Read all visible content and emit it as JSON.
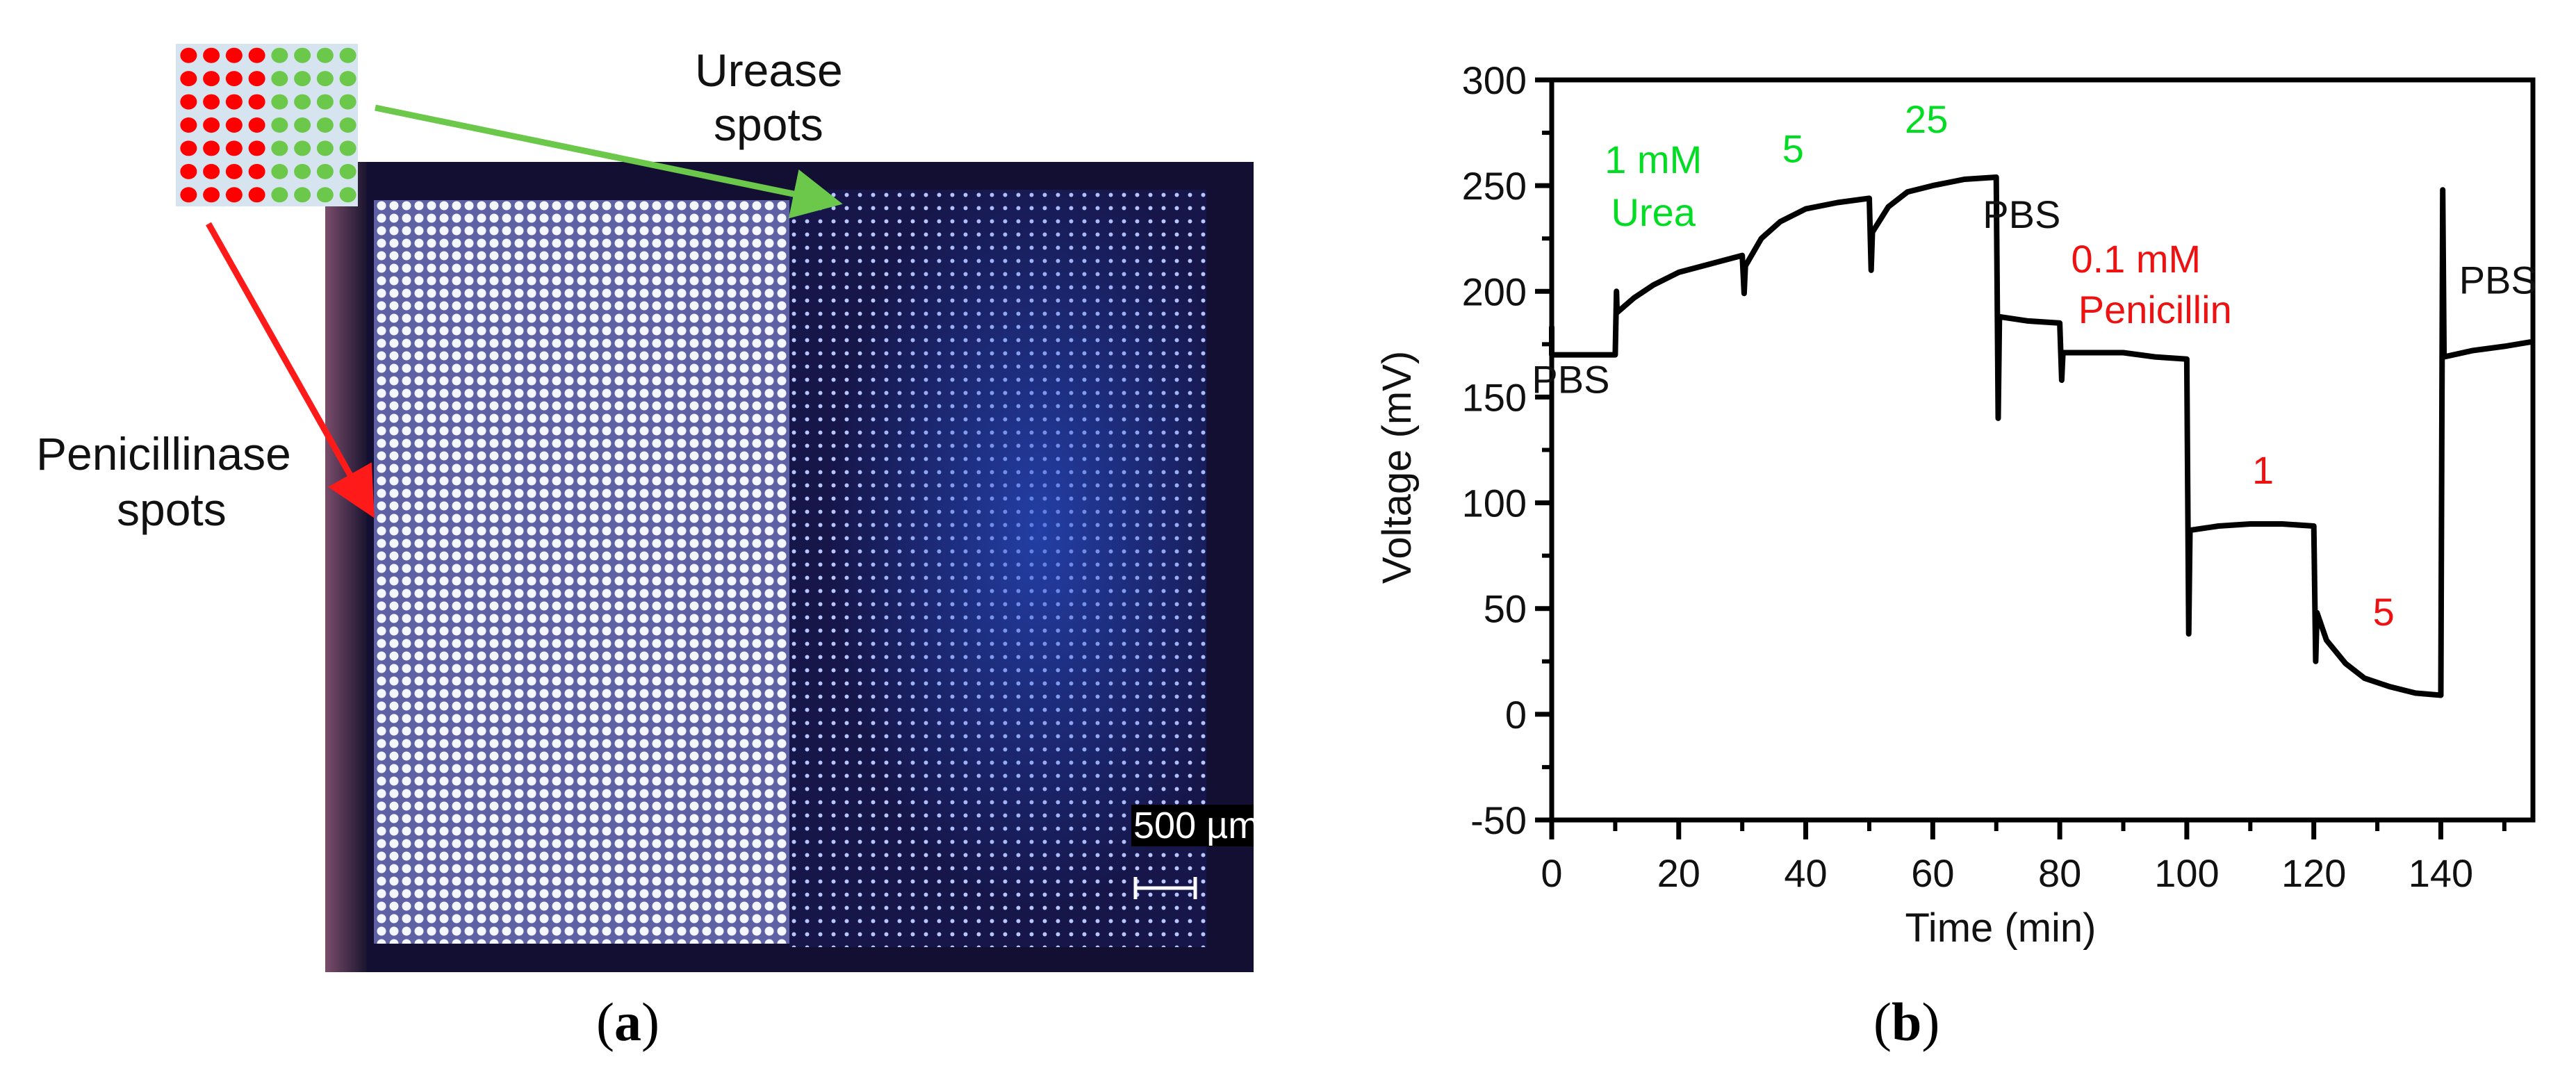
{
  "figure": {
    "panel_a": {
      "caption_open": "(",
      "caption_letter": "a",
      "caption_close": ")",
      "schematic": {
        "rows": 7,
        "cols_red": 4,
        "cols_green": 4,
        "background": "#d6e4f0",
        "red": "#ff0000",
        "green": "#6cc84a"
      },
      "labels": {
        "urease_line1": "Urease",
        "urease_line2": "spots",
        "penicillinase_line1": "Penicillinase",
        "penicillinase_line2": "spots"
      },
      "arrows": {
        "urease_color": "#6cc84a",
        "penicillinase_color": "#ff1a1a"
      },
      "micrograph": {
        "scale_bar_label": "500 µm",
        "left_region": "bright penicillinase spot array",
        "right_region": "dark blue urease spot array"
      }
    },
    "panel_b": {
      "caption_open": "(",
      "caption_letter": "b",
      "caption_close": ")"
    }
  },
  "chart_data": {
    "type": "line",
    "title": "",
    "xlabel": "Time (min)",
    "ylabel": "Voltage (mV)",
    "xlim": [
      0,
      154.5
    ],
    "ylim": [
      -50,
      300
    ],
    "xticks": [
      0,
      20,
      40,
      60,
      80,
      100,
      120,
      140
    ],
    "xticks_minor": [
      10,
      30,
      50,
      70,
      90,
      110,
      130,
      150
    ],
    "yticks": [
      -50,
      0,
      50,
      100,
      150,
      200,
      250,
      300
    ],
    "yticks_minor": [
      -25,
      25,
      75,
      125,
      175,
      225,
      275
    ],
    "grid": false,
    "legend": null,
    "line_color": "#000000",
    "series": [
      {
        "name": "Voltage",
        "points": [
          [
            0,
            183
          ],
          [
            0,
            170
          ],
          [
            10,
            170
          ],
          [
            10.2,
            200
          ],
          [
            10.3,
            190
          ],
          [
            13,
            197
          ],
          [
            16,
            203
          ],
          [
            20,
            209
          ],
          [
            25,
            213
          ],
          [
            30,
            217
          ],
          [
            30.3,
            199
          ],
          [
            30.5,
            212
          ],
          [
            33,
            225
          ],
          [
            36,
            233
          ],
          [
            40,
            239
          ],
          [
            45,
            242
          ],
          [
            50,
            244
          ],
          [
            50.3,
            210
          ],
          [
            50.5,
            228
          ],
          [
            53,
            240
          ],
          [
            56,
            247
          ],
          [
            60,
            250
          ],
          [
            65,
            253
          ],
          [
            70,
            254
          ],
          [
            70.3,
            140
          ],
          [
            70.5,
            188
          ],
          [
            75,
            186
          ],
          [
            80,
            185
          ],
          [
            80.3,
            158
          ],
          [
            80.5,
            171
          ],
          [
            85,
            171
          ],
          [
            90,
            171
          ],
          [
            95,
            169
          ],
          [
            100,
            168
          ],
          [
            100.3,
            38
          ],
          [
            100.5,
            87
          ],
          [
            105,
            89
          ],
          [
            110,
            90
          ],
          [
            115,
            90
          ],
          [
            120,
            89
          ],
          [
            120.3,
            25
          ],
          [
            120.5,
            48
          ],
          [
            122,
            35
          ],
          [
            125,
            24
          ],
          [
            128,
            17
          ],
          [
            132,
            13
          ],
          [
            136,
            10
          ],
          [
            140,
            9
          ],
          [
            140.3,
            248
          ],
          [
            140.5,
            169
          ],
          [
            145,
            172
          ],
          [
            150,
            174
          ],
          [
            154,
            176
          ]
        ]
      }
    ],
    "annotations": [
      {
        "text": "PBS",
        "x": 3,
        "y": 152,
        "color": "#111111"
      },
      {
        "text": "1 mM",
        "x": 16,
        "y": 256,
        "color": "#00dd22"
      },
      {
        "text": "Urea",
        "x": 16,
        "y": 231,
        "color": "#00dd22"
      },
      {
        "text": "5",
        "x": 38,
        "y": 261,
        "color": "#00dd22"
      },
      {
        "text": "25",
        "x": 59,
        "y": 275,
        "color": "#00dd22"
      },
      {
        "text": "PBS",
        "x": 74,
        "y": 230,
        "color": "#111111"
      },
      {
        "text": "0.1 mM",
        "x": 92,
        "y": 209,
        "color": "#ee1111"
      },
      {
        "text": "Penicillin",
        "x": 95,
        "y": 185,
        "color": "#ee1111"
      },
      {
        "text": "1",
        "x": 112,
        "y": 109,
        "color": "#ee1111"
      },
      {
        "text": "5",
        "x": 131,
        "y": 42,
        "color": "#ee1111"
      },
      {
        "text": "PBS",
        "x": 149,
        "y": 199,
        "color": "#111111"
      }
    ]
  }
}
